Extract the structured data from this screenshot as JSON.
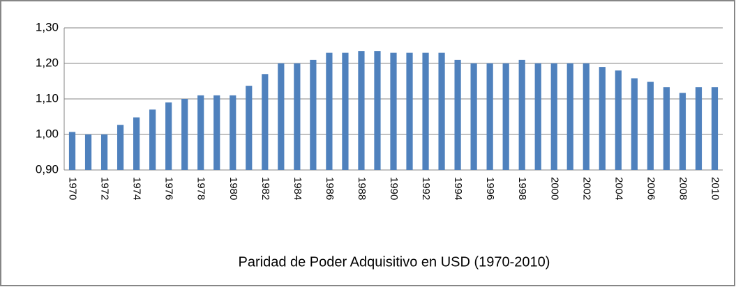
{
  "chart_data": {
    "type": "bar",
    "x_label": "Paridad de Poder Adquisitivo en USD (1970-2010)",
    "categories": [
      "1970",
      null,
      "1972",
      null,
      "1974",
      null,
      "1976",
      null,
      "1978",
      null,
      "1980",
      null,
      "1982",
      null,
      "1984",
      null,
      "1986",
      null,
      "1988",
      null,
      "1990",
      null,
      "1992",
      null,
      "1994",
      null,
      "1996",
      null,
      "1998",
      null,
      "2000",
      null,
      "2002",
      null,
      "2004",
      null,
      "2006",
      null,
      "2008",
      null,
      "2010"
    ],
    "values": [
      1.007,
      1.0,
      1.0,
      1.027,
      1.048,
      1.07,
      1.09,
      1.1,
      1.11,
      1.11,
      1.11,
      1.137,
      1.17,
      1.2,
      1.2,
      1.21,
      1.23,
      1.23,
      1.235,
      1.235,
      1.23,
      1.23,
      1.23,
      1.23,
      1.21,
      1.2,
      1.2,
      1.2,
      1.21,
      1.2,
      1.2,
      1.2,
      1.2,
      1.19,
      1.18,
      1.158,
      1.148,
      1.133,
      1.117,
      1.133,
      1.133
    ],
    "color": "#4f81bd",
    "ylim": [
      0.9,
      1.3
    ],
    "yticks": [
      {
        "value": 0.9,
        "label": "0,90"
      },
      {
        "value": 1.0,
        "label": "1,00"
      },
      {
        "value": 1.1,
        "label": "1,10"
      },
      {
        "value": 1.2,
        "label": "1,20"
      },
      {
        "value": 1.3,
        "label": "1,30"
      }
    ],
    "grid": true
  }
}
